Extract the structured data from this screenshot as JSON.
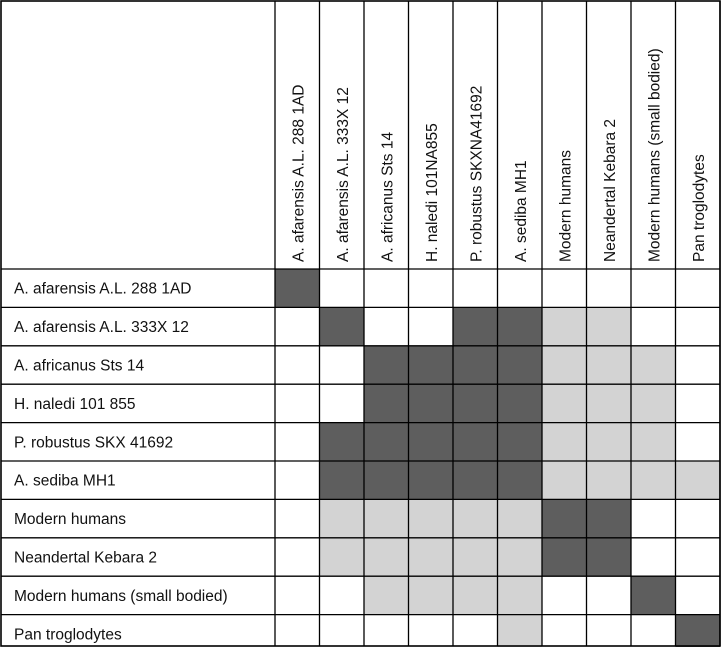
{
  "chart_data": {
    "type": "heatmap",
    "columns": [
      "A. afarensis A.L. 288 1AD",
      "A. afarensis A.L. 333X 12",
      "A. africanus Sts 14",
      "H. naledi 101NA855",
      "P. robustus SKXNA41692",
      "A. sediba MH1",
      "Modern humans",
      "Neandertal Kebara 2",
      "Modern humans (small bodied)",
      "Pan troglodytes"
    ],
    "rows": [
      "A. afarensis A.L. 288 1AD",
      "A. afarensis A.L. 333X 12",
      "A. africanus Sts 14",
      "H. naledi 101 855",
      "P. robustus SKX 41692",
      "A. sediba MH1",
      "Modern humans",
      "Neandertal Kebara 2",
      "Modern humans (small bodied)",
      "Pan troglodytes"
    ],
    "levels": {
      "0": "#ffffff",
      "1": "#d3d3d3",
      "2": "#5e5e5e"
    },
    "cells": [
      [
        2,
        0,
        0,
        0,
        0,
        0,
        0,
        0,
        0,
        0
      ],
      [
        0,
        2,
        0,
        0,
        2,
        2,
        1,
        1,
        0,
        0
      ],
      [
        0,
        0,
        2,
        2,
        2,
        2,
        1,
        1,
        1,
        0
      ],
      [
        0,
        0,
        2,
        2,
        2,
        2,
        1,
        1,
        1,
        0
      ],
      [
        0,
        2,
        2,
        2,
        2,
        2,
        1,
        1,
        1,
        0
      ],
      [
        0,
        2,
        2,
        2,
        2,
        2,
        1,
        1,
        1,
        1
      ],
      [
        0,
        1,
        1,
        1,
        1,
        1,
        2,
        2,
        0,
        0
      ],
      [
        0,
        1,
        1,
        1,
        1,
        1,
        2,
        2,
        0,
        0
      ],
      [
        0,
        0,
        1,
        1,
        1,
        1,
        0,
        0,
        2,
        0
      ],
      [
        0,
        0,
        0,
        0,
        0,
        1,
        0,
        0,
        0,
        2
      ]
    ]
  }
}
